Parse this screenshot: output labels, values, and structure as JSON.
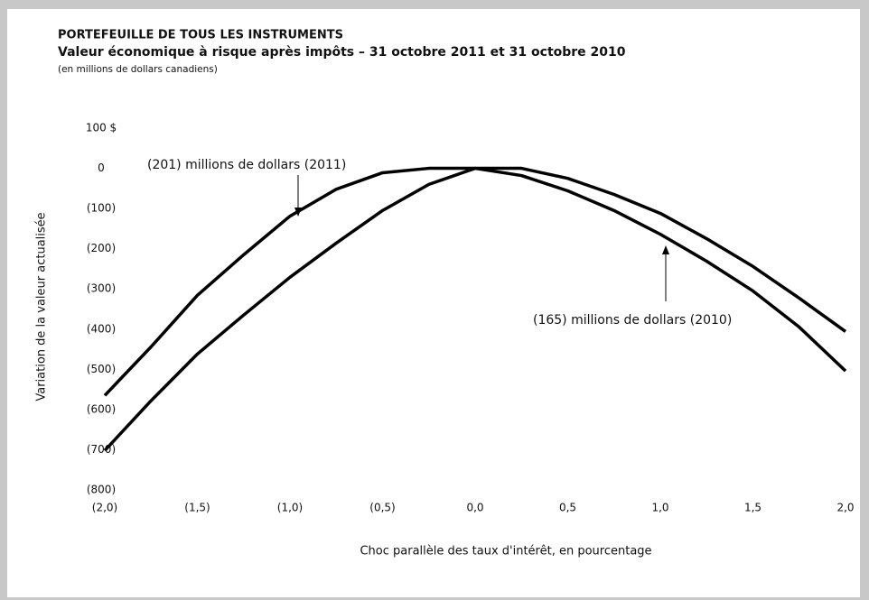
{
  "chart_data": {
    "type": "line",
    "title": "PORTEFEUILLE DE TOUS LES INSTRUMENTS",
    "subtitle": "Valeur économique à risque après impôts – 31 octobre 2011 et 31 octobre 2010",
    "note": "(en millions de dollars canadiens)",
    "xlabel": "Choc parallèle des taux d'intérêt, en pourcentage",
    "ylabel": "Variation de la valeur actualisée",
    "annotations": [
      "(201) millions de dollars (2011)",
      "(165) millions de dollars (2010)"
    ],
    "x": [
      -2,
      -1.75,
      -1.5,
      -1.25,
      -1,
      -0.75,
      -0.5,
      -0.25,
      0,
      0.25,
      0.5,
      0.75,
      1,
      1.25,
      1.5,
      1.75,
      2
    ],
    "series": [
      {
        "color": "#000000",
        "values": [
          -565,
          -444,
          -316,
          -215,
          -119,
          -52,
          -11,
          0,
          0,
          0,
          -25,
          -65,
          -112,
          -175,
          -244,
          -323,
          -406
        ]
      },
      {
        "color": "#000000",
        "values": [
          -702,
          -578,
          -462,
          -365,
          -271,
          -186,
          -105,
          -40,
          0,
          -18,
          -56,
          -105,
          -164,
          -231,
          -305,
          -395,
          -504
        ]
      }
    ],
    "xlim": [
      -2,
      2
    ],
    "xticks": [
      {
        "value": -2,
        "label": "(2,0)"
      },
      {
        "value": -1.5,
        "label": "(1,5)"
      },
      {
        "value": -1,
        "label": "(1,0)"
      },
      {
        "value": -0.5,
        "label": "(0,5)"
      },
      {
        "value": 0,
        "label": "0,0"
      },
      {
        "value": 0.5,
        "label": "0,5"
      },
      {
        "value": 1,
        "label": "1,0"
      },
      {
        "value": 1.5,
        "label": "1,5"
      },
      {
        "value": 2,
        "label": "2,0"
      }
    ],
    "ylim": [
      -800,
      100
    ],
    "yticks": [
      {
        "value": 100,
        "label": "100 $"
      },
      0,
      {
        "value": -100,
        "label": "(100)"
      },
      {
        "value": -200,
        "label": "(200)"
      },
      {
        "value": -300,
        "label": "(300)"
      },
      {
        "value": -400,
        "label": "(400)"
      },
      {
        "value": -500,
        "label": "(500)"
      },
      {
        "value": -600,
        "label": "(600)"
      },
      {
        "value": -700,
        "label": "(700)"
      },
      {
        "value": -800,
        "label": "(800)"
      }
    ]
  }
}
